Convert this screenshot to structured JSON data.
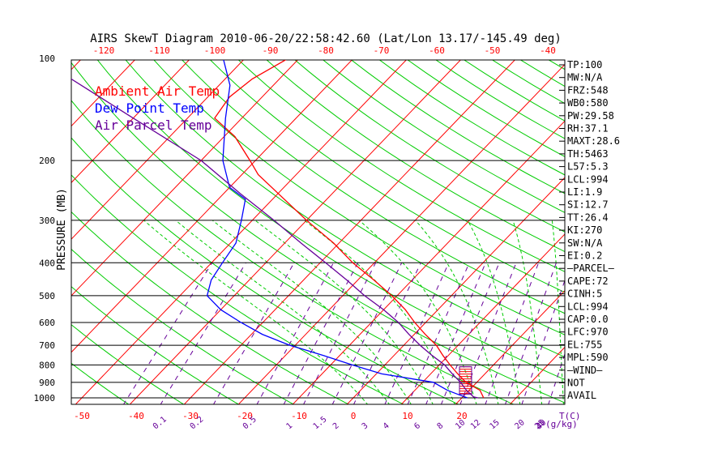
{
  "chart_data": {
    "type": "line",
    "title": "AIRS SkewT Diagram 2010-06-20/22:58:42.60 (Lat/Lon 13.17/-145.49 deg)",
    "ylabel": "PRESSURE (MB)",
    "xlabel": "T(C)",
    "mixing_ratio_unit": "(g/kg)",
    "y_scale": "log",
    "ylim": [
      1050,
      100
    ],
    "xlim_bottom": [
      -50,
      22
    ],
    "x_ticks_bottom": [
      -50,
      -40,
      -30,
      -20,
      -10,
      0,
      10,
      20
    ],
    "x_ticks_top": [
      -120,
      -110,
      -100,
      -90,
      -80,
      -70,
      -60,
      -50,
      -40
    ],
    "pressure_ticks": [
      100,
      200,
      300,
      400,
      500,
      600,
      700,
      800,
      900,
      1000
    ],
    "mixing_ratio_labels": [
      "0.1",
      "0.2",
      "0.5",
      "1",
      "1.5",
      "2",
      "3",
      "4",
      "6",
      "8",
      "10",
      "12",
      "15",
      "20",
      "25",
      "30",
      "40"
    ],
    "legend": [
      {
        "label": "Ambient Air Temp",
        "color": "#ff0000"
      },
      {
        "label": "Dew Point Temp",
        "color": "#0000ff"
      },
      {
        "label": "Air Parcel Temp",
        "color": "#660099"
      }
    ],
    "series": [
      {
        "name": "Ambient Air Temp",
        "color": "#ff0000",
        "points": [
          [
            1000,
            24
          ],
          [
            950,
            22
          ],
          [
            900,
            18
          ],
          [
            850,
            15
          ],
          [
            800,
            12
          ],
          [
            750,
            9
          ],
          [
            700,
            6
          ],
          [
            650,
            2
          ],
          [
            600,
            -2
          ],
          [
            550,
            -6
          ],
          [
            500,
            -11
          ],
          [
            450,
            -17
          ],
          [
            400,
            -24
          ],
          [
            350,
            -31
          ],
          [
            300,
            -40
          ],
          [
            250,
            -50
          ],
          [
            220,
            -57
          ],
          [
            200,
            -61
          ],
          [
            170,
            -68
          ],
          [
            150,
            -75
          ],
          [
            130,
            -76
          ],
          [
            115,
            -75
          ],
          [
            100,
            -72
          ]
        ]
      },
      {
        "name": "Dew Point Temp",
        "color": "#0000ff",
        "points": [
          [
            1000,
            21
          ],
          [
            980,
            19
          ],
          [
            950,
            16
          ],
          [
            900,
            12
          ],
          [
            850,
            1
          ],
          [
            800,
            -6
          ],
          [
            750,
            -13
          ],
          [
            700,
            -21
          ],
          [
            650,
            -28
          ],
          [
            600,
            -34
          ],
          [
            550,
            -40
          ],
          [
            500,
            -45
          ],
          [
            450,
            -47
          ],
          [
            400,
            -48
          ],
          [
            350,
            -49
          ],
          [
            300,
            -52
          ],
          [
            260,
            -55
          ],
          [
            240,
            -60
          ],
          [
            200,
            -66
          ],
          [
            150,
            -73
          ],
          [
            120,
            -78
          ],
          [
            100,
            -84
          ]
        ]
      },
      {
        "name": "Air Parcel Temp",
        "color": "#660099",
        "points": [
          [
            1000,
            23
          ],
          [
            994,
            22
          ],
          [
            950,
            19.5
          ],
          [
            900,
            17
          ],
          [
            850,
            14
          ],
          [
            800,
            11
          ],
          [
            750,
            7
          ],
          [
            700,
            3
          ],
          [
            650,
            -1
          ],
          [
            600,
            -5
          ],
          [
            550,
            -10
          ],
          [
            500,
            -16
          ],
          [
            450,
            -22
          ],
          [
            400,
            -29
          ],
          [
            350,
            -37
          ],
          [
            300,
            -46
          ],
          [
            250,
            -57
          ],
          [
            200,
            -70
          ],
          [
            150,
            -90
          ],
          [
            100,
            -118
          ]
        ]
      }
    ],
    "stats": [
      "TP:100",
      "MW:N/A",
      "FRZ:548",
      "WB0:580",
      "PW:29.58",
      "RH:37.1",
      "MAXT:28.6",
      "TH:5463",
      "L57:5.3",
      "LCL:994",
      "LI:1.9",
      "SI:12.7",
      "TT:26.4",
      "KI:270",
      "SW:N/A",
      "EI:0.2",
      "—PARCEL—",
      "CAPE:72",
      "CINH:5",
      "LCL:994",
      "CAP:0.0",
      "LFC:970",
      "EL:755",
      "MPL:590",
      "—WIND—",
      "NOT",
      "AVAIL"
    ],
    "wind_shaded_range_hpa": [
      810,
      975
    ],
    "background_lines": {
      "isotherms_color": "#ff0000",
      "dry_adiabats_color": "#00cc00",
      "moist_adiabats_color": "#00cc00",
      "mixing_ratio_color": "#660099"
    }
  }
}
